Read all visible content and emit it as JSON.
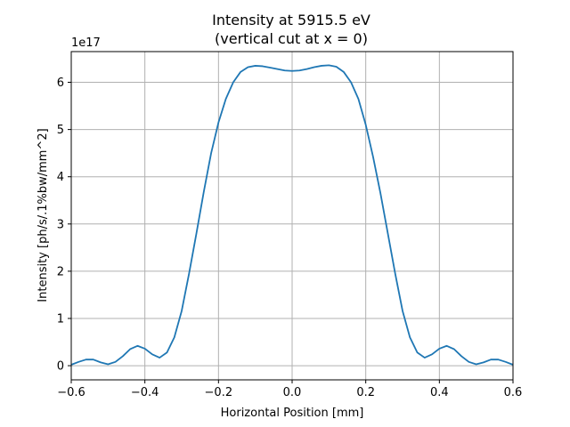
{
  "colors": {
    "line": "#1f77b4",
    "grid": "#b0b0b0",
    "axis": "#000000"
  },
  "chart_data": {
    "type": "line",
    "title": "Intensity at 5915.5 eV",
    "subtitle": "(vertical cut at x = 0)",
    "xlabel": "Horizontal Position [mm]",
    "ylabel": "Intensity [ph/s/.1%bw/mm^2]",
    "y_scale_label": "1e17",
    "y_scale_factor": 1e+17,
    "xlim": [
      -0.6,
      0.6
    ],
    "ylim": [
      -0.3,
      6.65
    ],
    "x_ticks": [
      -0.6,
      -0.4,
      -0.2,
      0.0,
      0.2,
      0.4,
      0.6
    ],
    "x_tick_labels": [
      "−0.6",
      "−0.4",
      "−0.2",
      "0.0",
      "0.2",
      "0.4",
      "0.6"
    ],
    "y_ticks": [
      0,
      1,
      2,
      3,
      4,
      5,
      6
    ],
    "y_tick_labels": [
      "0",
      "1",
      "2",
      "3",
      "4",
      "5",
      "6"
    ],
    "grid": true,
    "legend": "none",
    "series": [
      {
        "x": [
          -0.6,
          -0.58,
          -0.56,
          -0.54,
          -0.52,
          -0.5,
          -0.48,
          -0.46,
          -0.44,
          -0.42,
          -0.4,
          -0.38,
          -0.36,
          -0.34,
          -0.32,
          -0.3,
          -0.28,
          -0.26,
          -0.24,
          -0.22,
          -0.2,
          -0.18,
          -0.16,
          -0.14,
          -0.12,
          -0.1,
          -0.08,
          -0.06,
          -0.04,
          -0.02,
          0.0,
          0.02,
          0.04,
          0.06,
          0.08,
          0.1,
          0.12,
          0.14,
          0.16,
          0.18,
          0.2,
          0.22,
          0.24,
          0.26,
          0.28,
          0.3,
          0.32,
          0.34,
          0.36,
          0.38,
          0.4,
          0.42,
          0.44,
          0.46,
          0.48,
          0.5,
          0.52,
          0.54,
          0.56,
          0.58,
          0.6
        ],
        "y": [
          0.02,
          0.08,
          0.13,
          0.13,
          0.07,
          0.03,
          0.08,
          0.2,
          0.35,
          0.42,
          0.36,
          0.24,
          0.17,
          0.28,
          0.6,
          1.16,
          1.95,
          2.8,
          3.68,
          4.5,
          5.15,
          5.65,
          6.0,
          6.22,
          6.32,
          6.35,
          6.34,
          6.31,
          6.28,
          6.25,
          6.24,
          6.25,
          6.28,
          6.32,
          6.35,
          6.36,
          6.33,
          6.22,
          6.0,
          5.65,
          5.1,
          4.42,
          3.65,
          2.8,
          1.95,
          1.16,
          0.6,
          0.28,
          0.17,
          0.24,
          0.36,
          0.42,
          0.35,
          0.2,
          0.08,
          0.03,
          0.07,
          0.13,
          0.13,
          0.08,
          0.02
        ]
      }
    ]
  }
}
